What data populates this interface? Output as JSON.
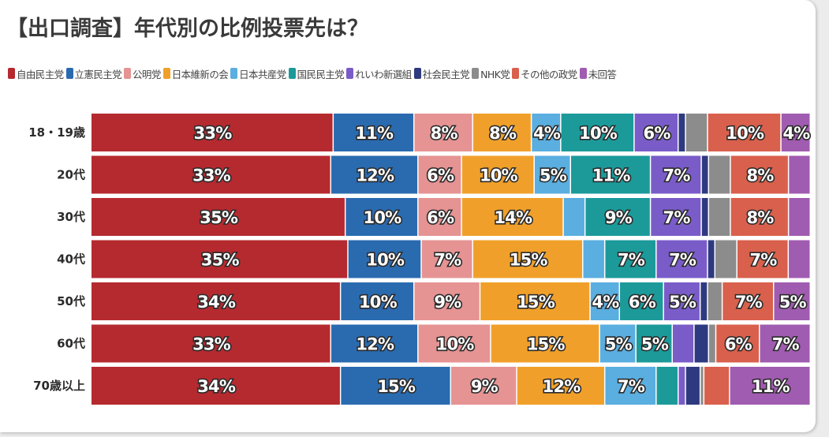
{
  "title": "【出口調査】年代別の比例投票先は？",
  "chart_data": {
    "type": "bar",
    "orientation": "horizontal",
    "stacked": true,
    "percent": true,
    "title": "【出口調査】年代別の比例投票先は？",
    "legend_position": "top",
    "categories": [
      "18・19歳",
      "20代",
      "30代",
      "40代",
      "50代",
      "60代",
      "70歳以上"
    ],
    "series": [
      {
        "name": "自由民主党",
        "color": "#b52a2f",
        "values": [
          33,
          33,
          35,
          35,
          34,
          33,
          34
        ],
        "labels": [
          "33%",
          "33%",
          "35%",
          "35%",
          "34%",
          "33%",
          "34%"
        ]
      },
      {
        "name": "立憲民主党",
        "color": "#2a6bb0",
        "values": [
          11,
          12,
          10,
          10,
          10,
          12,
          15
        ],
        "labels": [
          "11%",
          "12%",
          "10%",
          "10%",
          "10%",
          "12%",
          "15%"
        ]
      },
      {
        "name": "公明党",
        "color": "#e69393",
        "values": [
          8,
          6,
          6,
          7,
          9,
          10,
          9
        ],
        "labels": [
          "8%",
          "6%",
          "6%",
          "7%",
          "9%",
          "10%",
          "9%"
        ]
      },
      {
        "name": "日本維新の会",
        "color": "#f0a02a",
        "values": [
          8,
          10,
          14,
          15,
          15,
          15,
          12
        ],
        "labels": [
          "8%",
          "10%",
          "14%",
          "15%",
          "15%",
          "15%",
          "12%"
        ]
      },
      {
        "name": "日本共産党",
        "color": "#5aaee0",
        "values": [
          4,
          5,
          3,
          3,
          4,
          5,
          7
        ],
        "labels": [
          "4%",
          "5%",
          "",
          "",
          "4%",
          "5%",
          "7%"
        ]
      },
      {
        "name": "国民民主党",
        "color": "#1c9a9a",
        "values": [
          10,
          11,
          9,
          7,
          6,
          5,
          3
        ],
        "labels": [
          "10%",
          "11%",
          "9%",
          "7%",
          "6%",
          "5%",
          ""
        ]
      },
      {
        "name": "れいわ新選組",
        "color": "#7a5cc9",
        "values": [
          6,
          7,
          7,
          7,
          5,
          3,
          1
        ],
        "labels": [
          "6%",
          "7%",
          "7%",
          "7%",
          "5%",
          "",
          ""
        ]
      },
      {
        "name": "社会民主党",
        "color": "#2e3a80",
        "values": [
          1,
          1,
          1,
          1,
          1,
          2,
          2
        ],
        "labels": [
          "",
          "",
          "",
          "",
          "",
          "",
          ""
        ]
      },
      {
        "name": "NHK党",
        "color": "#8c8c8c",
        "values": [
          3,
          3,
          3,
          3,
          2,
          1,
          0.5
        ],
        "labels": [
          "",
          "",
          "",
          "",
          "",
          "",
          ""
        ]
      },
      {
        "name": "その他の政党",
        "color": "#d9604c",
        "values": [
          10,
          8,
          8,
          7,
          7,
          6,
          3.5
        ],
        "labels": [
          "10%",
          "8%",
          "8%",
          "7%",
          "7%",
          "6%",
          ""
        ]
      },
      {
        "name": "未回答",
        "color": "#a05cb0",
        "values": [
          4,
          3,
          3,
          3,
          5,
          7,
          11
        ],
        "labels": [
          "4%",
          "",
          "",
          "",
          "5%",
          "7%",
          "11%"
        ]
      }
    ]
  }
}
